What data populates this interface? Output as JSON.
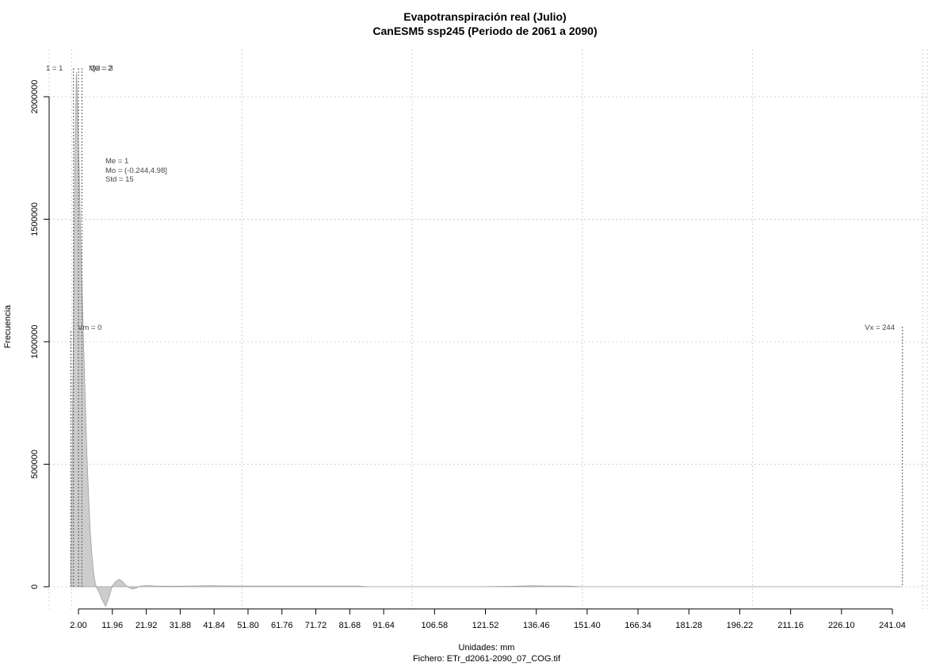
{
  "chart_data": {
    "type": "area",
    "title": "Evapotranspiración real (Julio)",
    "subtitle": "CanESM5 ssp245 (Periodo de 2061 a 2090)",
    "xlabel": "Unidades: mm",
    "ylabel": "Frecuencia",
    "caption": "Fichero: ETr_d2061-2090_07_COG.tif",
    "xlim": [
      -2.0,
      252.0
    ],
    "ylim": [
      -80000,
      2100000
    ],
    "x_ticks": [
      "2.00",
      "11.96",
      "21.92",
      "31.88",
      "41.84",
      "51.80",
      "61.76",
      "71.72",
      "81.68",
      "91.64",
      "106.58",
      "121.52",
      "136.46",
      "151.40",
      "166.34",
      "181.28",
      "196.22",
      "211.16",
      "226.10",
      "241.04"
    ],
    "y_ticks": [
      "0",
      "500000",
      "1000000",
      "1500000",
      "2000000"
    ],
    "grid": true,
    "series": [
      {
        "x": [
          -0.244,
          0.2,
          0.6,
          1.0,
          1.4,
          1.8,
          2.2,
          2.6,
          3.0,
          3.5,
          4.0,
          4.5,
          5.0,
          5.5,
          6.0,
          6.5,
          7.0,
          7.5,
          8.0,
          9.0,
          10.0,
          11.0,
          12.0,
          13.0,
          14.0,
          15.0,
          16.0,
          17.0,
          18.0,
          19.0,
          20.0,
          22.0,
          25.0,
          30.0,
          40.0,
          50.0,
          60.0,
          70.0,
          80.0,
          84.0,
          87.0,
          92.0,
          100.0,
          120.0,
          130.0,
          135.0,
          140.0,
          146.0,
          150.0,
          170.0,
          200.0,
          230.0,
          244.0
        ],
        "values": [
          0,
          600000,
          1150000,
          1800000,
          2100000,
          1950000,
          1700000,
          1450000,
          1250000,
          1000000,
          760000,
          540000,
          360000,
          220000,
          120000,
          50000,
          10000,
          -8000,
          -20000,
          -55000,
          -80000,
          -40000,
          5000,
          22000,
          30000,
          20000,
          5000,
          -5000,
          -10000,
          -5000,
          2000,
          5000,
          3000,
          2000,
          4000,
          3000,
          3000,
          3000,
          3000,
          3000,
          0,
          0,
          0,
          0,
          2000,
          4000,
          3000,
          3000,
          0,
          0,
          0,
          0,
          0
        ]
      }
    ],
    "annotations": {
      "q1_label": "1 = 1",
      "median_label": "Me = 2",
      "q3_label": "Q3 = 3",
      "stats": [
        "Me = 1",
        "Mo = (-0.244,4.98]",
        "Std = 15"
      ],
      "vmin_label": "Vm = 0",
      "vmax_label": "Vx = 244"
    },
    "markers": {
      "vmin": -0.244,
      "q1": 1.0,
      "median": 2.0,
      "q3": 3.0,
      "vmax": 244.0
    }
  }
}
